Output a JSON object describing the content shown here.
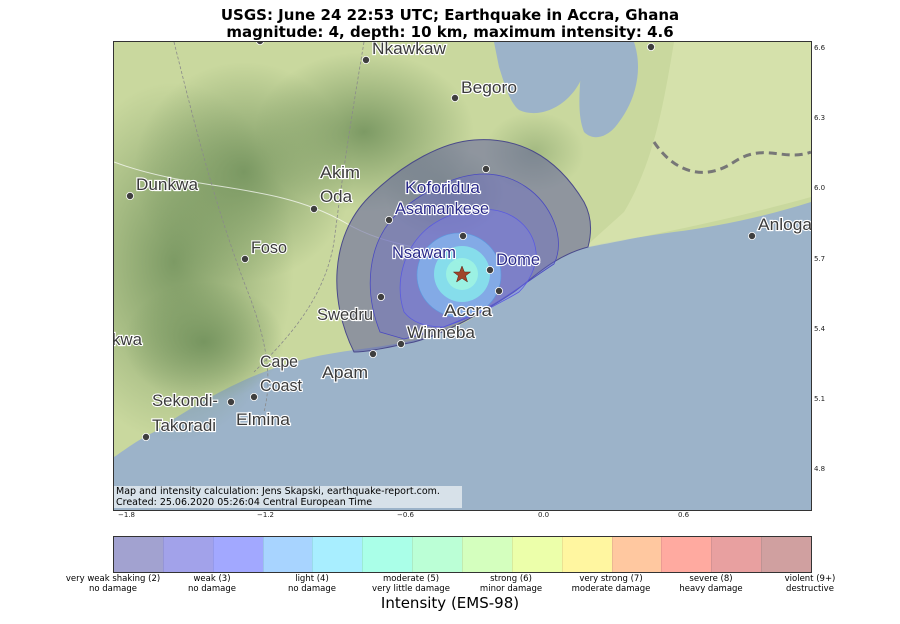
{
  "title": {
    "line1": "USGS: June 24 22:53 UTC; Earthquake in Accra, Ghana",
    "line2": "magnitude: 4, depth: 10 km, maximum intensity: 4.6"
  },
  "map": {
    "cities": [
      {
        "name": "Nkawkaw",
        "id": "nkawkaw"
      },
      {
        "name": "Begoro",
        "id": "begoro"
      },
      {
        "name": "Dunkwa",
        "id": "dunkwa"
      },
      {
        "name": "Akim",
        "name2": "Oda",
        "id": "akim-oda"
      },
      {
        "name": "Koforidua",
        "id": "koforidua"
      },
      {
        "name": "Asamankese",
        "id": "asamankese"
      },
      {
        "name": "Nsawam",
        "id": "nsawam"
      },
      {
        "name": "Dome",
        "id": "dome"
      },
      {
        "name": "Foso",
        "id": "foso"
      },
      {
        "name": "Anloga",
        "id": "anloga"
      },
      {
        "name": "Swedru",
        "id": "swedru"
      },
      {
        "name": "Accra",
        "id": "accra"
      },
      {
        "name": "Winneba",
        "id": "winneba"
      },
      {
        "name": "kwa",
        "id": "tarkwa"
      },
      {
        "name": "Cape",
        "name2": "Coast",
        "id": "cape-coast"
      },
      {
        "name": "Apam",
        "id": "apam"
      },
      {
        "name": "Sekondi-",
        "name2": "Takoradi",
        "id": "sekondi-takoradi"
      },
      {
        "name": "Elmina",
        "id": "elmina"
      }
    ],
    "lon_ticks": [
      "−1.8",
      "−1.2",
      "−0.6",
      "0.0",
      "0.6"
    ],
    "lat_ticks": [
      "6.6",
      "6.3",
      "6.0",
      "5.7",
      "5.4",
      "5.1",
      "4.8"
    ],
    "credit_line1": "Map and intensity calculation: Jens Skapski, earthquake-report.com.",
    "credit_line2": "Created: 25.06.2020 05:26:04 Central European Time",
    "epicenter_icon": "star-icon",
    "colors": {
      "land": "#c9d89e",
      "sea": "#9cb3c9",
      "epicenter": "#a0442a"
    }
  },
  "colorbar": {
    "colors": [
      "#a2a2d0",
      "#a2a2ea",
      "#a2a8ff",
      "#a8d4ff",
      "#a8eeff",
      "#aaffe8",
      "#bbffd6",
      "#d4ffbe",
      "#ecffaa",
      "#fff6a0",
      "#ffc8a0",
      "#ffaaa0",
      "#e8a0a0",
      "#d0a0a0"
    ],
    "labels": [
      {
        "l1": "very weak shaking (2)",
        "l2": "no damage"
      },
      {
        "l1": "weak (3)",
        "l2": "no damage"
      },
      {
        "l1": "light (4)",
        "l2": "no damage"
      },
      {
        "l1": "moderate (5)",
        "l2": "very little damage"
      },
      {
        "l1": "strong (6)",
        "l2": "minor damage"
      },
      {
        "l1": "very strong (7)",
        "l2": "moderate damage"
      },
      {
        "l1": "severe (8)",
        "l2": "heavy damage"
      },
      {
        "l1": "violent (9+)",
        "l2": "destructive"
      }
    ],
    "axis_label": "Intensity (EMS-98)"
  }
}
